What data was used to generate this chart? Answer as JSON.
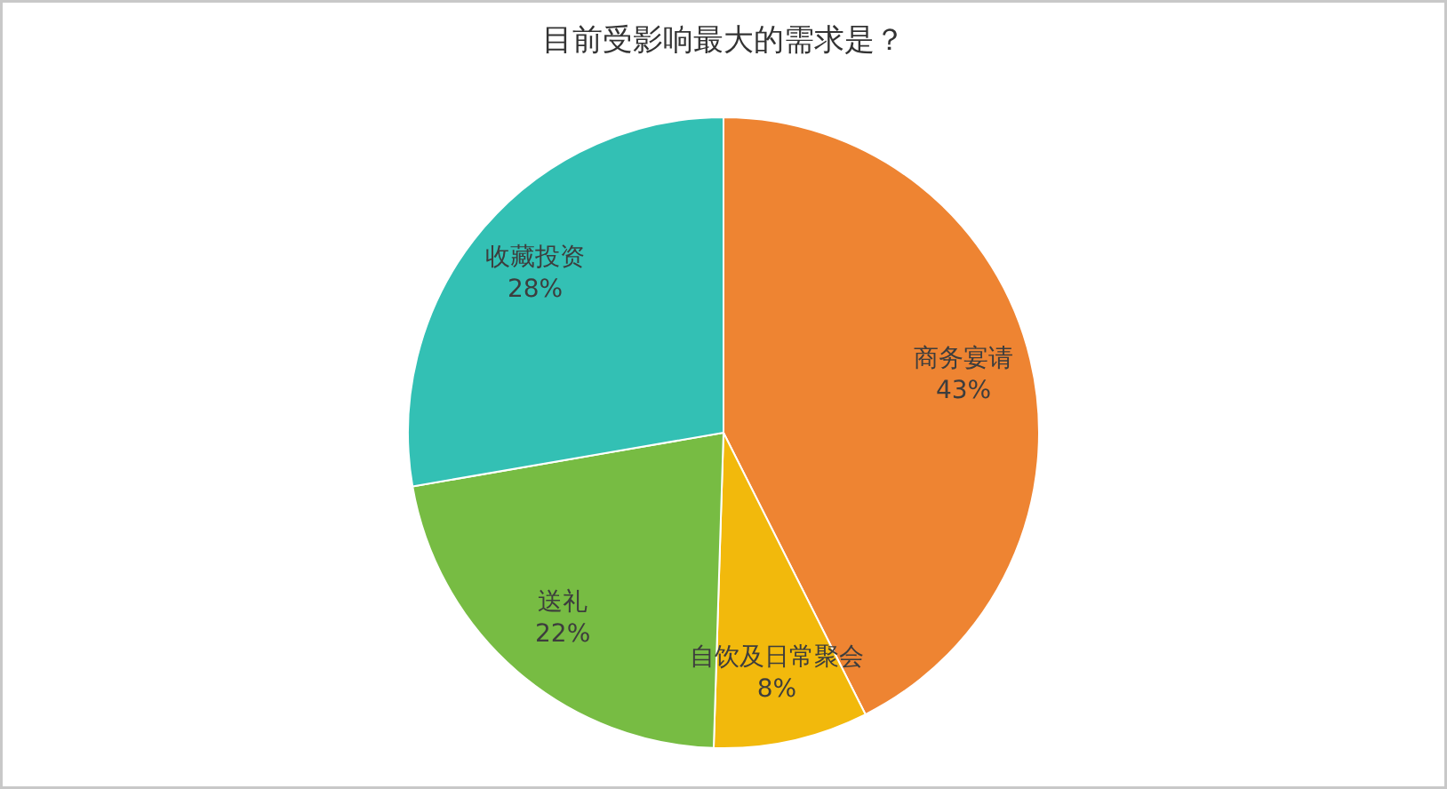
{
  "chart_data": {
    "type": "pie",
    "title": "目前受影响最大的需求是？",
    "categories": [
      "商务宴请",
      "自饮及日常聚会",
      "送礼",
      "收藏投资"
    ],
    "values": [
      43,
      8,
      22,
      28
    ],
    "colors": [
      "#ee8432",
      "#f2b90c",
      "#77bc43",
      "#33c0b4"
    ],
    "value_labels": [
      "43%",
      "8%",
      "22%",
      "28%"
    ]
  }
}
